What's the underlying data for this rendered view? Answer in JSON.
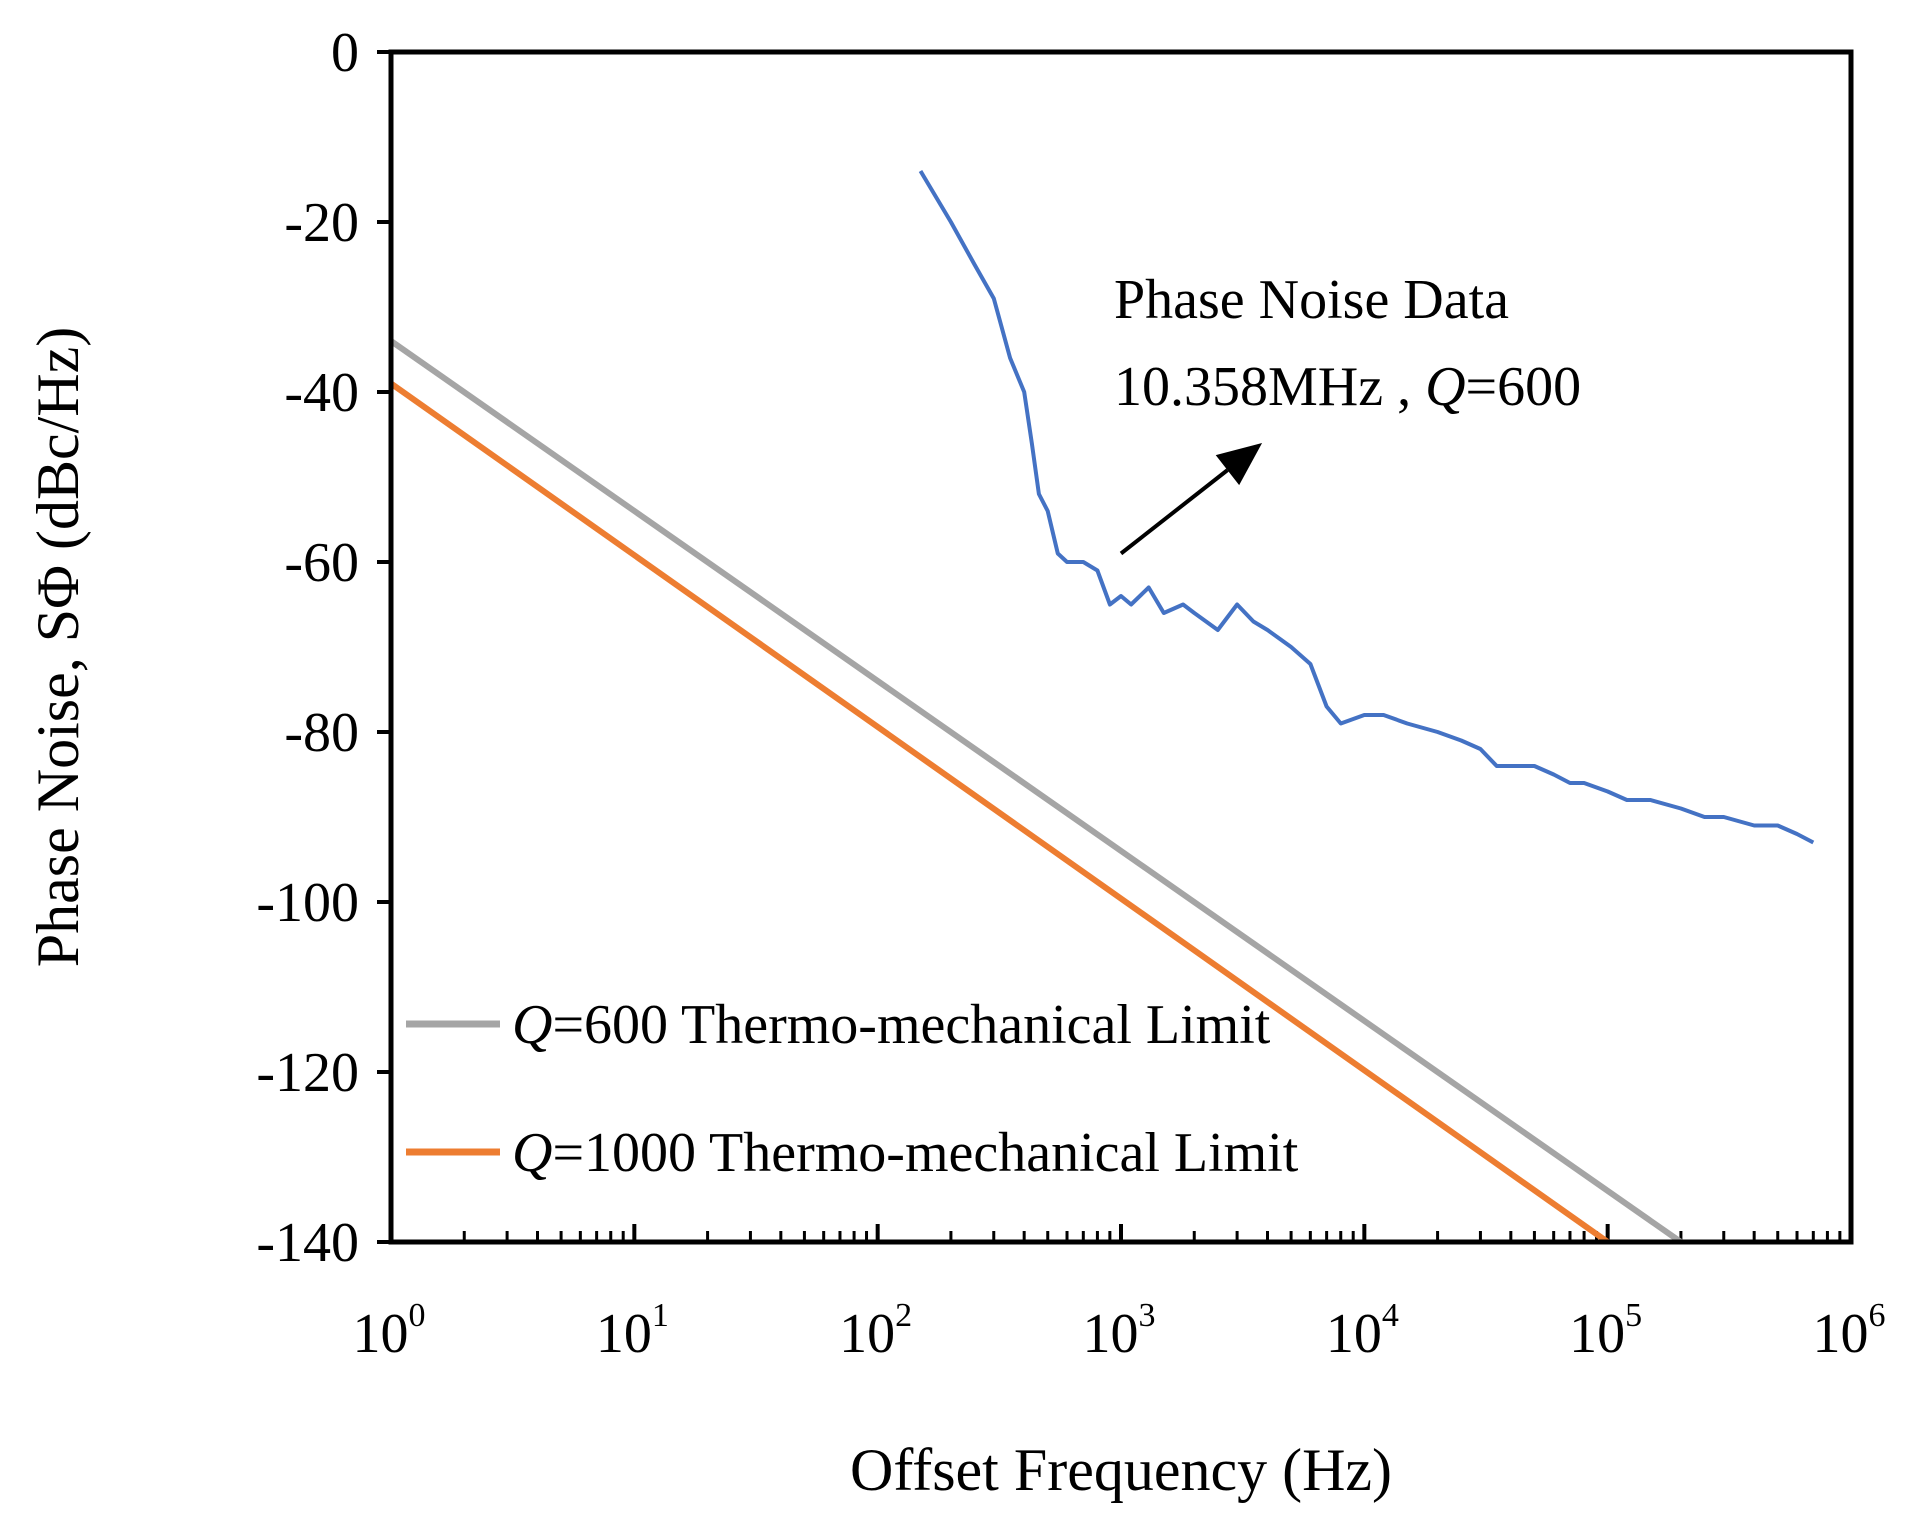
{
  "chart_data": {
    "type": "line",
    "title": "",
    "xlabel": "Offset Frequency (Hz)",
    "ylabel": "Phase Noise, SΦ (dBc/Hz)",
    "xscale": "log",
    "xlim": [
      1,
      1000000
    ],
    "ylim": [
      -140,
      0
    ],
    "y_ticks": [
      0,
      -20,
      -40,
      -60,
      -80,
      -100,
      -120,
      -140
    ],
    "y_tick_labels": [
      "0",
      "-20",
      "-40",
      "-60",
      "-80",
      "-100",
      "-120",
      "-140"
    ],
    "x_tick_exponents": [
      "0",
      "1",
      "2",
      "3",
      "4",
      "5",
      "6"
    ],
    "x_tick_base": "10",
    "grid": false,
    "legend_position": "bottom-left",
    "series": [
      {
        "name": "Phase Noise Data",
        "color": "#4472C4",
        "x": [
          150,
          200,
          250,
          300,
          350,
          400,
          430,
          460,
          500,
          550,
          600,
          700,
          800,
          900,
          1000,
          1100,
          1300,
          1500,
          1800,
          2000,
          2500,
          3000,
          3500,
          4000,
          5000,
          6000,
          7000,
          8000,
          10000,
          12000,
          15000,
          20000,
          25000,
          30000,
          35000,
          40000,
          50000,
          60000,
          70000,
          80000,
          100000,
          120000,
          150000,
          200000,
          250000,
          300000,
          400000,
          500000,
          600000,
          700000
        ],
        "y": [
          -14,
          -20,
          -25,
          -29,
          -36,
          -40,
          -46,
          -52,
          -54,
          -59,
          -60,
          -60,
          -61,
          -65,
          -64,
          -65,
          -63,
          -66,
          -65,
          -66,
          -68,
          -65,
          -67,
          -68,
          -70,
          -72,
          -77,
          -79,
          -78,
          -78,
          -79,
          -80,
          -81,
          -82,
          -84,
          -84,
          -84,
          -85,
          -86,
          -86,
          -87,
          -88,
          -88,
          -89,
          -90,
          -90,
          -91,
          -91,
          -92,
          -93
        ]
      },
      {
        "name": "Q=600 Thermo-mechanical Limit",
        "legend_italic": "Q",
        "legend_rest": "=600 Thermo-mechanical Limit",
        "color": "#A5A5A5",
        "x": [
          1,
          200000
        ],
        "y": [
          -34,
          -140
        ]
      },
      {
        "name": "Q=1000 Thermo-mechanical Limit",
        "legend_italic": "Q",
        "legend_rest": "=1000 Thermo-mechanical Limit",
        "color": "#ED7D31",
        "x": [
          1,
          100000
        ],
        "y": [
          -39,
          -140
        ]
      }
    ],
    "annotations": [
      {
        "line1": "Phase Noise Data",
        "line2_prefix": "10.358MHz , ",
        "line2_italic": "Q",
        "line2_suffix": "=600",
        "arrow_from": [
          1000,
          -59
        ],
        "arrow_to": [
          3800,
          -46
        ]
      }
    ]
  }
}
